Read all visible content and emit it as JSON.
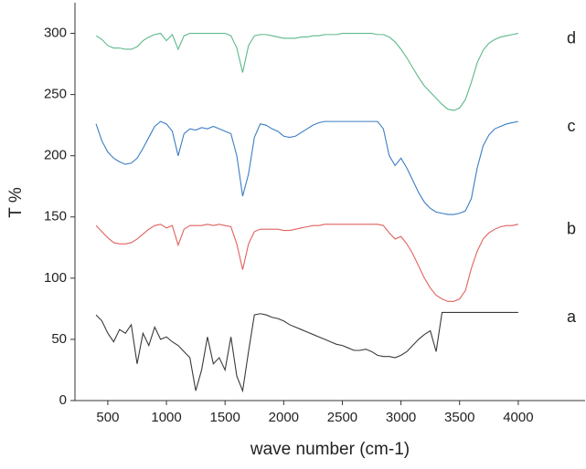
{
  "chart_data": {
    "type": "line",
    "x_label": "wave number (cm-1)",
    "y_label": "T %",
    "x": [
      400,
      450,
      500,
      550,
      600,
      650,
      700,
      750,
      800,
      850,
      900,
      950,
      1000,
      1050,
      1100,
      1150,
      1200,
      1250,
      1300,
      1350,
      1400,
      1450,
      1500,
      1550,
      1600,
      1650,
      1700,
      1750,
      1800,
      1850,
      1900,
      1950,
      2000,
      2050,
      2100,
      2150,
      2200,
      2250,
      2300,
      2350,
      2400,
      2450,
      2500,
      2550,
      2600,
      2650,
      2700,
      2750,
      2800,
      2850,
      2900,
      2950,
      3000,
      3050,
      3100,
      3150,
      3200,
      3250,
      3300,
      3350,
      3400,
      3450,
      3500,
      3550,
      3600,
      3650,
      3700,
      3750,
      3800,
      3850,
      3900,
      3950,
      4000
    ],
    "series": [
      {
        "name": "a",
        "color": "#3a3a3a",
        "values": [
          70,
          65,
          55,
          48,
          58,
          55,
          62,
          30,
          55,
          45,
          60,
          50,
          52,
          48,
          45,
          40,
          35,
          8,
          25,
          52,
          30,
          35,
          25,
          52,
          20,
          8,
          40,
          70,
          71,
          70,
          68,
          67,
          65,
          62,
          60,
          58,
          56,
          54,
          52,
          50,
          48,
          46,
          45,
          43,
          41,
          41,
          42,
          40,
          37,
          36,
          36,
          35,
          37,
          40,
          45,
          50,
          54,
          57,
          40,
          72,
          72,
          72,
          72,
          72,
          72,
          72,
          72,
          72,
          72,
          72,
          72,
          72,
          72
        ]
      },
      {
        "name": "b",
        "color": "#e0625f",
        "values": [
          143,
          138,
          133,
          129,
          128,
          128,
          129,
          132,
          136,
          140,
          143,
          144,
          141,
          143,
          127,
          140,
          143,
          143,
          143,
          144,
          143,
          144,
          143,
          142,
          128,
          107,
          128,
          138,
          140,
          140,
          140,
          140,
          139,
          139,
          140,
          141,
          142,
          143,
          143,
          144,
          144,
          144,
          144,
          144,
          144,
          144,
          144,
          144,
          144,
          143,
          137,
          132,
          134,
          128,
          120,
          110,
          100,
          92,
          86,
          83,
          81,
          81,
          83,
          90,
          108,
          122,
          132,
          137,
          140,
          142,
          143,
          143,
          144
        ]
      },
      {
        "name": "c",
        "color": "#3b7dc4",
        "values": [
          226,
          212,
          203,
          198,
          195,
          193,
          194,
          198,
          206,
          215,
          224,
          228,
          226,
          220,
          200,
          218,
          222,
          221,
          223,
          222,
          224,
          222,
          220,
          218,
          200,
          167,
          185,
          215,
          226,
          225,
          222,
          220,
          216,
          215,
          216,
          219,
          222,
          225,
          227,
          228,
          228,
          228,
          228,
          228,
          228,
          228,
          228,
          228,
          228,
          222,
          200,
          192,
          198,
          190,
          180,
          170,
          162,
          157,
          154,
          153,
          152,
          152,
          153,
          155,
          165,
          190,
          208,
          217,
          222,
          224,
          226,
          227,
          228
        ]
      },
      {
        "name": "d",
        "color": "#5db88a",
        "values": [
          298,
          295,
          290,
          288,
          288,
          287,
          287,
          289,
          294,
          297,
          299,
          300,
          294,
          299,
          287,
          298,
          300,
          300,
          300,
          300,
          300,
          300,
          300,
          298,
          288,
          268,
          290,
          298,
          299,
          299,
          298,
          297,
          296,
          296,
          296,
          297,
          297,
          298,
          298,
          299,
          299,
          299,
          300,
          300,
          300,
          300,
          300,
          300,
          299,
          299,
          297,
          293,
          287,
          280,
          272,
          264,
          257,
          252,
          247,
          242,
          238,
          237,
          239,
          246,
          260,
          276,
          286,
          292,
          295,
          297,
          298,
          299,
          300
        ]
      }
    ],
    "xlim": [
      220,
      4570
    ],
    "ylim": [
      0,
      325
    ],
    "xticks": [
      500,
      1000,
      1500,
      2000,
      2500,
      3000,
      3500,
      4000
    ],
    "yticks": [
      0,
      50,
      100,
      150,
      200,
      250,
      300
    ],
    "grid": false,
    "legend": "inline-right"
  }
}
